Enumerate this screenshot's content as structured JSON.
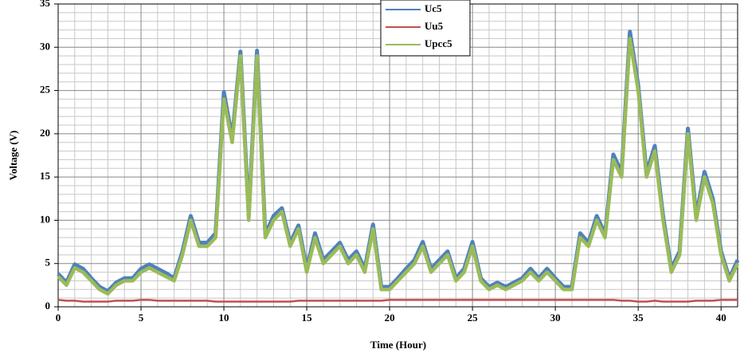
{
  "chart_data": {
    "type": "line",
    "x_label": "Time (Hour)",
    "y_label": "Voltage (V)",
    "x": [
      0,
      0.5,
      1,
      1.5,
      2,
      2.5,
      3,
      3.5,
      4,
      4.5,
      5,
      5.5,
      6,
      6.5,
      7,
      7.5,
      8,
      8.5,
      9,
      9.5,
      10,
      10.5,
      11,
      11.5,
      12,
      12.5,
      13,
      13.5,
      14,
      14.5,
      15,
      15.5,
      16,
      16.5,
      17,
      17.5,
      18,
      18.5,
      19,
      19.5,
      20,
      20.5,
      21,
      21.5,
      22,
      22.5,
      23,
      23.5,
      24,
      24.5,
      25,
      25.5,
      26,
      26.5,
      27,
      27.5,
      28,
      28.5,
      29,
      29.5,
      30,
      30.5,
      31,
      31.5,
      32,
      32.5,
      33,
      33.5,
      34,
      34.5,
      35,
      35.5,
      36,
      36.5,
      37,
      37.5,
      38,
      38.5,
      39,
      39.5,
      40,
      40.5,
      41
    ],
    "series": [
      {
        "name": "Uc5",
        "color": "#4f81bd",
        "values": [
          3.8,
          2.8,
          4.9,
          4.4,
          3.3,
          2.3,
          1.8,
          2.8,
          3.3,
          3.3,
          4.4,
          4.9,
          4.4,
          3.9,
          3.3,
          6.4,
          10.5,
          7.4,
          7.4,
          8.5,
          24.8,
          19.5,
          29.5,
          10.5,
          29.6,
          8.4,
          10.5,
          11.4,
          7.4,
          9.4,
          4.4,
          8.5,
          5.4,
          6.4,
          7.4,
          5.4,
          6.4,
          4.4,
          9.5,
          2.3,
          2.3,
          3.3,
          4.4,
          5.4,
          7.5,
          4.4,
          5.4,
          6.4,
          3.3,
          4.4,
          7.5,
          3.3,
          2.3,
          2.8,
          2.3,
          2.8,
          3.3,
          4.4,
          3.3,
          4.4,
          3.3,
          2.3,
          2.3,
          8.5,
          7.4,
          10.5,
          8.4,
          17.6,
          15.5,
          31.8,
          25.6,
          15.5,
          18.6,
          10.5,
          4.4,
          6.4,
          20.6,
          10.5,
          15.6,
          12.5,
          6.4,
          3.3,
          5.4
        ]
      },
      {
        "name": "Uu5",
        "color": "#c0504d",
        "values": [
          0.8,
          0.7,
          0.7,
          0.6,
          0.6,
          0.6,
          0.6,
          0.7,
          0.7,
          0.7,
          0.8,
          0.8,
          0.7,
          0.7,
          0.7,
          0.7,
          0.7,
          0.7,
          0.7,
          0.6,
          0.6,
          0.6,
          0.6,
          0.6,
          0.6,
          0.6,
          0.6,
          0.6,
          0.6,
          0.7,
          0.7,
          0.7,
          0.7,
          0.7,
          0.7,
          0.7,
          0.7,
          0.7,
          0.7,
          0.7,
          0.8,
          0.8,
          0.8,
          0.8,
          0.8,
          0.8,
          0.8,
          0.8,
          0.8,
          0.8,
          0.8,
          0.8,
          0.8,
          0.8,
          0.8,
          0.8,
          0.8,
          0.8,
          0.8,
          0.8,
          0.8,
          0.8,
          0.8,
          0.8,
          0.8,
          0.8,
          0.8,
          0.8,
          0.7,
          0.7,
          0.6,
          0.6,
          0.7,
          0.6,
          0.6,
          0.6,
          0.6,
          0.7,
          0.7,
          0.7,
          0.8,
          0.8,
          0.8
        ]
      },
      {
        "name": "Upcc5",
        "color": "#9bbb59",
        "values": [
          3.5,
          2.5,
          4.5,
          4,
          3,
          2,
          1.5,
          2.5,
          3,
          3,
          4,
          4.5,
          4,
          3.5,
          3,
          6,
          10,
          7,
          7,
          8,
          24,
          19,
          29,
          10,
          29,
          8,
          10,
          11,
          7,
          9,
          4,
          8,
          5,
          6,
          7,
          5,
          6,
          4,
          9,
          2,
          2,
          3,
          4,
          5,
          7,
          4,
          5,
          6,
          3,
          4,
          7,
          3,
          2,
          2.5,
          2,
          2.5,
          3,
          4,
          3,
          4,
          3,
          2,
          2,
          8,
          7,
          10,
          8,
          17,
          15,
          31,
          25,
          15,
          18,
          10,
          4,
          6,
          20,
          10,
          15,
          12,
          6,
          3,
          5
        ]
      }
    ],
    "xlim": [
      0,
      41
    ],
    "xticks": [
      0,
      5,
      10,
      15,
      20,
      25,
      30,
      35,
      40
    ],
    "ylim": [
      0,
      35
    ],
    "yticks": [
      0,
      5,
      10,
      15,
      20,
      25,
      30,
      35
    ],
    "grid": true,
    "legend": "top"
  }
}
